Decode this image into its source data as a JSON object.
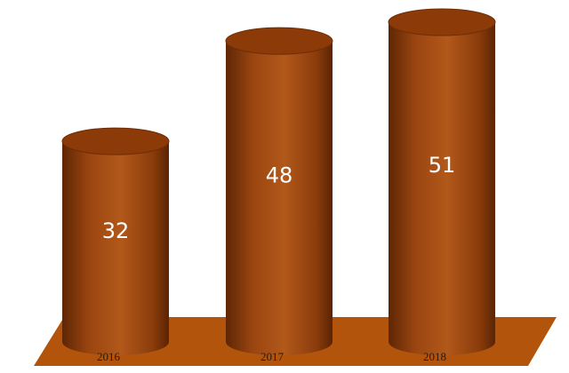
{
  "chart_data": {
    "type": "bar",
    "categories": [
      "2016",
      "2017",
      "2018"
    ],
    "values": [
      32,
      48,
      51
    ],
    "color": "#a64c0c"
  }
}
